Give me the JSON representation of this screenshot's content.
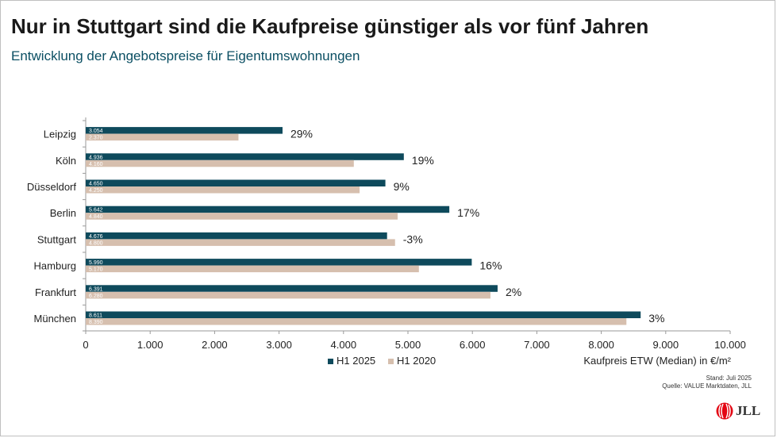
{
  "header": {
    "title": "Nur in Stuttgart sind die Kaufpreise günstiger als vor fünf Jahren",
    "subtitle": "Entwicklung der Angebotspreise für Eigentumswohnungen"
  },
  "footer": {
    "stand": "Stand: Juli 2025",
    "quelle": "Quelle: VALUE Marktdaten, JLL",
    "logo_text": "JLL"
  },
  "colors": {
    "h1_2025": "#0e4a5c",
    "h1_2020": "#d6bfae",
    "accent_title": "#0b4f63",
    "logo_red": "#e30613"
  },
  "chart_data": {
    "type": "bar",
    "orientation": "horizontal",
    "categories": [
      "Leipzig",
      "Köln",
      "Düsseldorf",
      "Berlin",
      "Stuttgart",
      "Hamburg",
      "Frankfurt",
      "München"
    ],
    "series": [
      {
        "name": "H1 2025",
        "values": [
          3054,
          4936,
          4650,
          5642,
          4676,
          5990,
          6391,
          8611
        ],
        "labels": [
          "3.054",
          "4.936",
          "4.650",
          "5.642",
          "4.676",
          "5.990",
          "6.391",
          "8.611"
        ]
      },
      {
        "name": "H1 2020",
        "values": [
          2370,
          4160,
          4250,
          4840,
          4800,
          5170,
          6280,
          8390
        ],
        "labels": [
          "2.370",
          "4.160",
          "4.250",
          "4.840",
          "4.800",
          "5.170",
          "6.280",
          "8.390"
        ]
      }
    ],
    "change_labels": [
      "29%",
      "19%",
      "9%",
      "17%",
      "-3%",
      "16%",
      "2%",
      "3%"
    ],
    "xlim": [
      0,
      10000
    ],
    "xticks": [
      "0",
      "1.000",
      "2.000",
      "3.000",
      "4.000",
      "5.000",
      "6.000",
      "7.000",
      "8.000",
      "9.000",
      "10.000"
    ],
    "xlabel": "Kaufpreis ETW (Median) in €/m²",
    "legend_position": "bottom-left",
    "grid": false
  }
}
